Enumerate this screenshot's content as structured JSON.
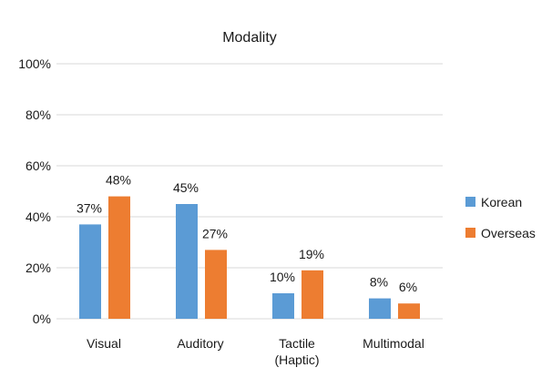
{
  "chart_data": {
    "type": "bar",
    "title": "Modality",
    "categories": [
      [
        "Visual"
      ],
      [
        "Auditory"
      ],
      [
        "Tactile",
        "(Haptic)"
      ],
      [
        "Multimodal"
      ]
    ],
    "series": [
      {
        "name": "Korean",
        "color": "#5b9bd5",
        "values": [
          37,
          45,
          10,
          8
        ],
        "labels": [
          "37%",
          "45%",
          "10%",
          "8%"
        ]
      },
      {
        "name": "Overseas",
        "color": "#ed7d31",
        "values": [
          48,
          27,
          19,
          6
        ],
        "labels": [
          "48%",
          "27%",
          "19%",
          "6%"
        ]
      }
    ],
    "ylim": [
      0,
      100
    ],
    "yticks": [
      0,
      20,
      40,
      60,
      80,
      100
    ],
    "ytick_labels": [
      "0%",
      "20%",
      "40%",
      "60%",
      "80%",
      "100%"
    ],
    "grid": true,
    "legend_position": "right"
  }
}
